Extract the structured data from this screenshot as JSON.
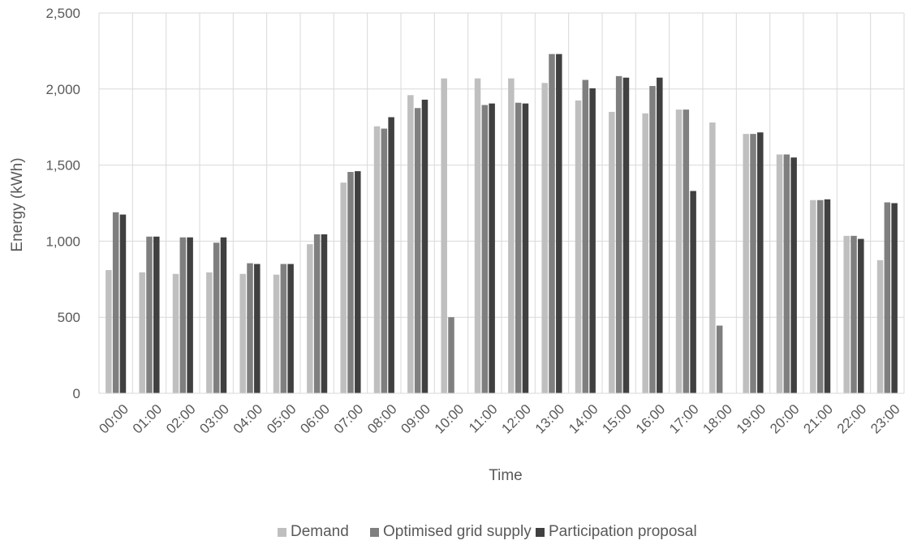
{
  "chart_data": {
    "type": "bar",
    "title": "",
    "xlabel": "Time",
    "ylabel": "Energy (kWh)",
    "ylim": [
      0,
      2500
    ],
    "yticks": [
      0,
      500,
      1000,
      1500,
      2000,
      2500
    ],
    "ytick_labels": [
      "0",
      "500",
      "1,000",
      "1,500",
      "2,000",
      "2,500"
    ],
    "grid": true,
    "legend_position": "bottom",
    "categories": [
      "00:00",
      "01:00",
      "02:00",
      "03:00",
      "04:00",
      "05:00",
      "06:00",
      "07:00",
      "08:00",
      "09:00",
      "10:00",
      "11:00",
      "12:00",
      "13:00",
      "14:00",
      "15:00",
      "16:00",
      "17:00",
      "18:00",
      "19:00",
      "20:00",
      "21:00",
      "22:00",
      "23:00"
    ],
    "series": [
      {
        "name": "Demand",
        "color": "#bfbfbf",
        "values": [
          810,
          795,
          785,
          795,
          785,
          780,
          980,
          1385,
          1755,
          1960,
          2070,
          2070,
          2070,
          2040,
          1925,
          1850,
          1840,
          1865,
          1780,
          1705,
          1570,
          1270,
          1035,
          875
        ]
      },
      {
        "name": "Optimised grid supply",
        "color": "#7f7f7f",
        "values": [
          1190,
          1030,
          1025,
          990,
          855,
          850,
          1045,
          1455,
          1740,
          1875,
          500,
          1895,
          1910,
          2230,
          2060,
          2085,
          2020,
          1865,
          445,
          1705,
          1570,
          1270,
          1035,
          1255
        ]
      },
      {
        "name": "Participation proposal",
        "color": "#404040",
        "values": [
          1175,
          1030,
          1025,
          1025,
          850,
          850,
          1045,
          1460,
          1815,
          1930,
          0,
          1905,
          1905,
          2230,
          2005,
          2075,
          2075,
          1330,
          0,
          1715,
          1550,
          1275,
          1015,
          1250
        ]
      }
    ]
  }
}
